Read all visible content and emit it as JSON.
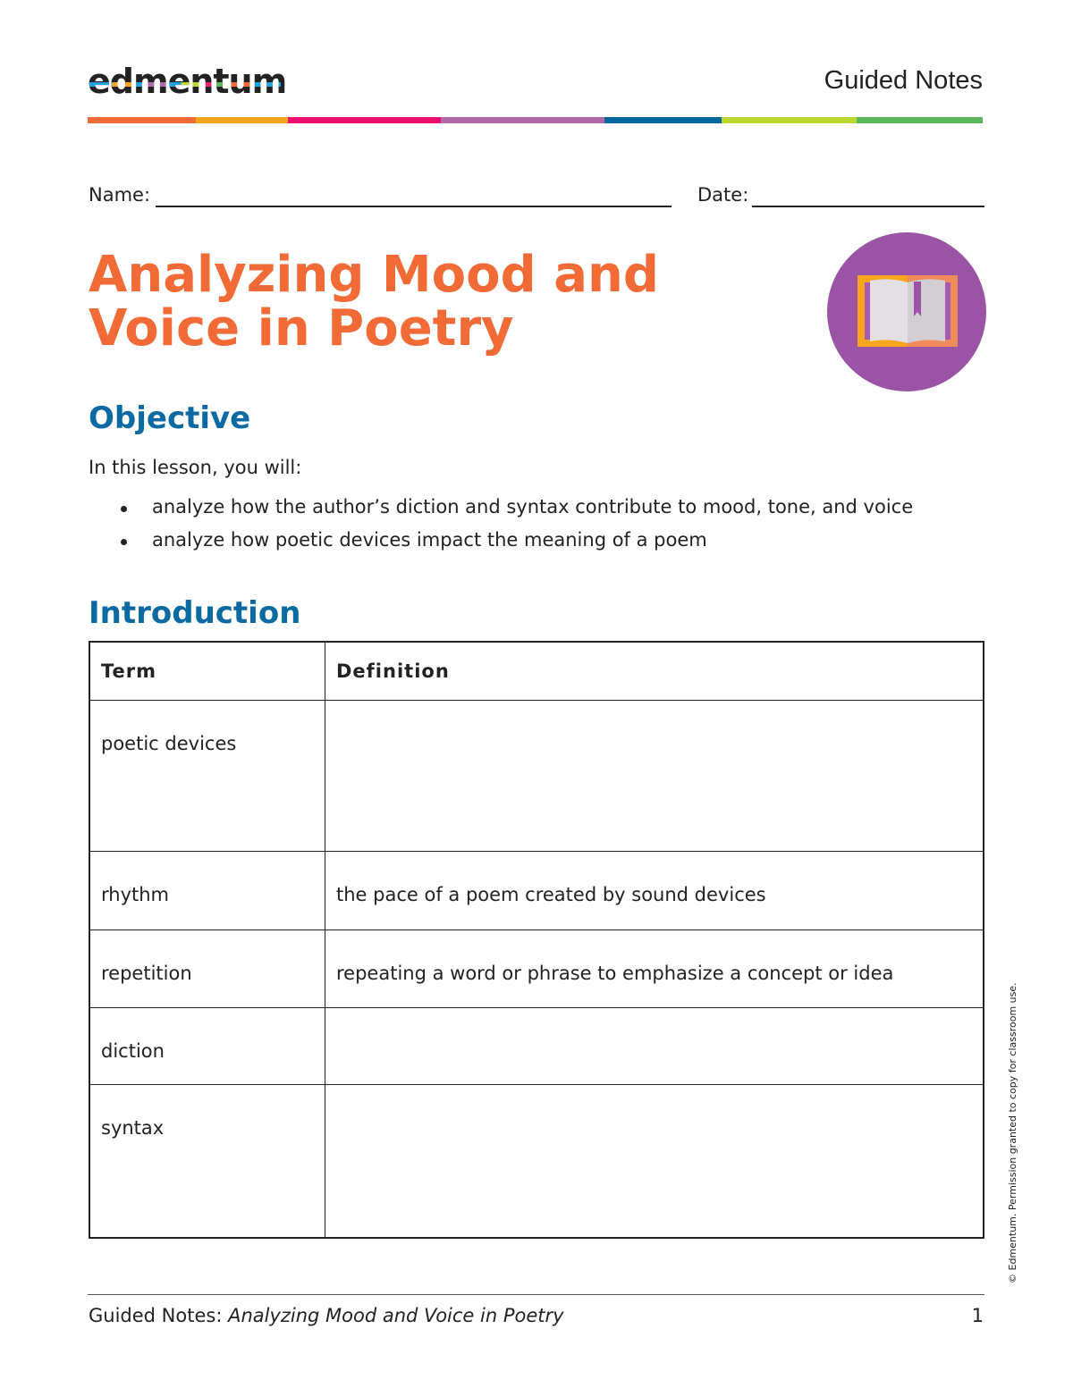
{
  "header": {
    "logo_text": "edmentum",
    "title": "Guided Notes"
  },
  "colors": {
    "bar": [
      "#f26a35",
      "#f7a51c",
      "#ec0f6b",
      "#b06aaa",
      "#00679e",
      "#bdd630",
      "#5cb85c"
    ],
    "title": "#f26a35",
    "heading": "#0a6aa1",
    "icon_bg": "#9b53a5"
  },
  "form": {
    "name_label": "Name:",
    "date_label": "Date:"
  },
  "title": "Analyzing Mood and Voice in Poetry",
  "icon": "open-book-icon",
  "objective": {
    "heading": "Objective",
    "intro": "In this lesson, you will:",
    "bullets": [
      "analyze how the author’s diction and syntax contribute to mood, tone, and voice",
      "analyze how poetic devices impact the meaning of a poem"
    ]
  },
  "introduction": {
    "heading": "Introduction",
    "columns": [
      "Term",
      "Definition"
    ],
    "rows": [
      {
        "term": "poetic devices",
        "definition": ""
      },
      {
        "term": "rhythm",
        "definition": "the pace of a poem created by sound devices"
      },
      {
        "term": "repetition",
        "definition": "repeating a word or phrase to emphasize a concept or idea"
      },
      {
        "term": "diction",
        "definition": ""
      },
      {
        "term": "syntax",
        "definition": ""
      }
    ]
  },
  "copyright": "© Edmentum. Permission granted to copy for classroom use.",
  "footer": {
    "prefix": "Guided Notes: ",
    "title": "Analyzing Mood and Voice in Poetry",
    "page": "1"
  }
}
